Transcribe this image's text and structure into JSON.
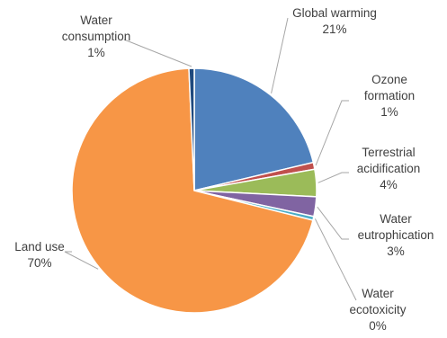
{
  "chart_data": {
    "type": "pie",
    "title": "",
    "slices": [
      {
        "label": "Global warming",
        "label_lines": [
          "Global warming"
        ],
        "percent_label": "21%",
        "value": 21.3,
        "color": "#4F81BD"
      },
      {
        "label": "Ozone formation",
        "label_lines": [
          "Ozone",
          "formation"
        ],
        "percent_label": "1%",
        "value": 0.9,
        "color": "#C0504D"
      },
      {
        "label": "Terrestrial acidification",
        "label_lines": [
          "Terrestrial",
          "acidification"
        ],
        "percent_label": "4%",
        "value": 3.6,
        "color": "#9BBB59"
      },
      {
        "label": "Water eutrophication",
        "label_lines": [
          "Water",
          "eutrophication"
        ],
        "percent_label": "3%",
        "value": 2.6,
        "color": "#8064A2"
      },
      {
        "label": "Water ecotoxicity",
        "label_lines": [
          "Water",
          "ecotoxicity"
        ],
        "percent_label": "0%",
        "value": 0.5,
        "color": "#4BACC6"
      },
      {
        "label": "Land use",
        "label_lines": [
          "Land use"
        ],
        "percent_label": "70%",
        "value": 70.4,
        "color": "#F79646"
      },
      {
        "label": "Water consumption",
        "label_lines": [
          "Water",
          "consumption"
        ],
        "percent_label": "1%",
        "value": 0.7,
        "color": "#1F497D"
      }
    ],
    "start_angle": "12 o'clock",
    "direction": "clockwise",
    "legend": "none",
    "data_labels": "outside with leader lines"
  }
}
